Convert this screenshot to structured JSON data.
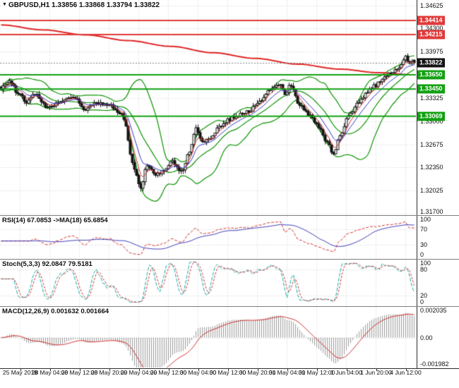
{
  "header": {
    "main": "GBPUSD,H1 1.33856 1.33868 1.33794 1.33822"
  },
  "colors": {
    "background": "#ffffff",
    "grid": "#d6d6d6",
    "candle_up_fill": "#ffffff",
    "candle_down_fill": "#151515",
    "candle_border": "#151515"
  },
  "chart_data": {
    "type": "candlestick",
    "symbol": "GBPUSD",
    "timeframe": "H1",
    "title": "GBPUSD,H1",
    "last_quote": {
      "open": 1.33856,
      "high": 1.33868,
      "low": 1.33794,
      "close": 1.33822
    },
    "price_range": [
      1.3168,
      1.347
    ],
    "y_ticks": [
      "1.34625",
      "1.34300",
      "1.33975",
      "1.33650",
      "1.33325",
      "1.33000",
      "1.32675",
      "1.32350",
      "1.32025",
      "1.31700"
    ],
    "n_candles": 196,
    "candle_noise": 0.0005,
    "wick_extra": 0.0005,
    "close_anchors": [
      [
        0,
        1.3346
      ],
      [
        4,
        1.3356
      ],
      [
        8,
        1.334
      ],
      [
        12,
        1.3327
      ],
      [
        16,
        1.3338
      ],
      [
        22,
        1.3318
      ],
      [
        28,
        1.3327
      ],
      [
        34,
        1.3333
      ],
      [
        40,
        1.3317
      ],
      [
        46,
        1.3325
      ],
      [
        52,
        1.3321
      ],
      [
        57,
        1.3309
      ],
      [
        59,
        1.3292
      ],
      [
        61,
        1.3254
      ],
      [
        63,
        1.323
      ],
      [
        66,
        1.3207
      ],
      [
        69,
        1.3239
      ],
      [
        73,
        1.3225
      ],
      [
        77,
        1.3231
      ],
      [
        81,
        1.3243
      ],
      [
        85,
        1.3229
      ],
      [
        89,
        1.3257
      ],
      [
        92,
        1.3289
      ],
      [
        95,
        1.3271
      ],
      [
        99,
        1.3277
      ],
      [
        103,
        1.3293
      ],
      [
        107,
        1.3301
      ],
      [
        112,
        1.3309
      ],
      [
        117,
        1.3313
      ],
      [
        122,
        1.3329
      ],
      [
        127,
        1.3343
      ],
      [
        131,
        1.3353
      ],
      [
        134,
        1.3339
      ],
      [
        137,
        1.3351
      ],
      [
        141,
        1.3323
      ],
      [
        146,
        1.3307
      ],
      [
        150,
        1.3293
      ],
      [
        154,
        1.3269
      ],
      [
        157,
        1.3253
      ],
      [
        160,
        1.3281
      ],
      [
        164,
        1.3307
      ],
      [
        168,
        1.3323
      ],
      [
        172,
        1.3337
      ],
      [
        176,
        1.3349
      ],
      [
        180,
        1.3359
      ],
      [
        184,
        1.3367
      ],
      [
        188,
        1.3375
      ],
      [
        191,
        1.3391
      ],
      [
        193,
        1.3379
      ],
      [
        195,
        1.33822
      ]
    ],
    "trend_ma_anchors": [
      [
        0,
        1.3435
      ],
      [
        20,
        1.3428
      ],
      [
        40,
        1.3421
      ],
      [
        60,
        1.3413
      ],
      [
        80,
        1.3405
      ],
      [
        100,
        1.3396
      ],
      [
        120,
        1.3388
      ],
      [
        140,
        1.338
      ],
      [
        160,
        1.3373
      ],
      [
        178,
        1.3368
      ],
      [
        195,
        1.3365
      ]
    ],
    "overlays": {
      "bollinger": {
        "period": 18,
        "deviation": 1.8,
        "color": "#0c9402"
      },
      "trend_ma": {
        "color": "#e02626"
      },
      "ma_fast": {
        "period": 5,
        "color": "#d43030"
      },
      "ma_medium": {
        "period": 10,
        "color": "#3535c8"
      }
    },
    "levels": [
      {
        "price": 1.34414,
        "label": "1.34414",
        "color": "#e03a3a",
        "type": "resistance"
      },
      {
        "price": 1.34215,
        "label": "1.34215",
        "color": "#e03a3a",
        "type": "resistance"
      },
      {
        "price": 1.3365,
        "label": "1.33650",
        "color": "#12a012",
        "type": "support"
      },
      {
        "price": 1.3345,
        "label": "1.33450",
        "color": "#12a012",
        "type": "support"
      },
      {
        "price": 1.33069,
        "label": "1.33069",
        "color": "#12a012",
        "type": "support"
      }
    ],
    "current_price": {
      "value": 1.33822,
      "label": "1.33822",
      "badge_color": "#141414"
    },
    "time_labels": [
      "25 May 2018",
      "28 May 04:00",
      "28 May 12:00",
      "28 May 20:00",
      "29 May 04:00",
      "29 May 12:00",
      "30 May 04:00",
      "30 May 12:00",
      "30 May 20:00",
      "31 May 04:00",
      "31 May 12:00",
      "1 Jun 04:00",
      "1 Jun 20:00",
      "4 Jun 12:00"
    ],
    "time_grid_candle_indices": [
      9,
      23,
      37,
      51,
      65,
      79,
      93,
      107,
      121,
      135,
      149,
      163,
      177,
      191
    ],
    "panels": [
      {
        "id": "rsi",
        "label": "RSI(14) 67.0853 ->MA(18) 65.6854",
        "indicator": "RSI",
        "period": 14,
        "value": 67.0853,
        "ma_period": 18,
        "ma_value": 65.6854,
        "range": [
          0,
          100
        ],
        "ticks": [
          "100",
          "70",
          "30",
          "0"
        ],
        "guides": [
          70,
          30
        ],
        "line_color": "#d22f2f",
        "signal_color": "#3a3ab8"
      },
      {
        "id": "stoch",
        "label": "Stoch(5,3,3) 92.0847 79.5181",
        "indicator": "Stochastic",
        "params": [
          5,
          3,
          3
        ],
        "value": 92.0847,
        "signal_value": 79.5181,
        "range": [
          0,
          100
        ],
        "ticks": [
          "100",
          "80",
          "20",
          "0"
        ],
        "guides": [
          80,
          20
        ],
        "line_color": "#17a8a8",
        "signal_color": "#d22f2f"
      },
      {
        "id": "macd",
        "label": "MACD(12,26,9) 0.001632 0.001664",
        "indicator": "MACD",
        "params": [
          12,
          26,
          9
        ],
        "value": 0.001632,
        "signal_value": 0.001664,
        "range": [
          -0.00205,
          0.00211
        ],
        "ticks": [
          "0.002035",
          "0.00",
          "-0.001982"
        ],
        "guides": [
          0
        ],
        "hist_color": "#9b9b9b",
        "signal_color": "#d22f2f"
      }
    ]
  }
}
